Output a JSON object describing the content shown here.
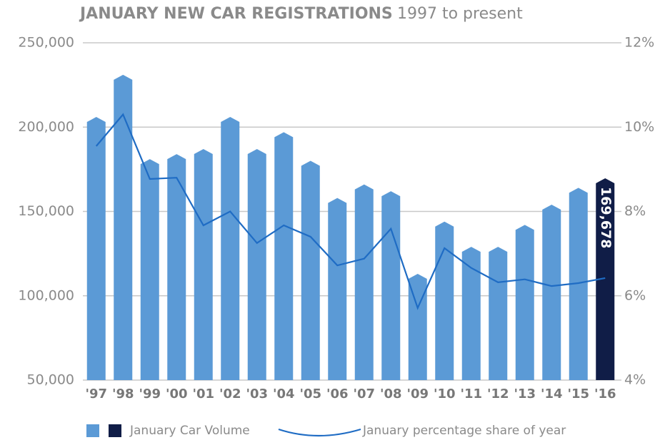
{
  "chart_data": {
    "type": "bar_line",
    "title": "JANUARY NEW CAR REGISTRATIONS",
    "subtitle": "1997 to present",
    "categories": [
      "'97",
      "'98",
      "'99",
      "'00",
      "'01",
      "'02",
      "'03",
      "'04",
      "'05",
      "'06",
      "'07",
      "'08",
      "'09",
      "'10",
      "'11",
      "'12",
      "'13",
      "'14",
      "'15",
      "'16"
    ],
    "series": [
      {
        "name": "January Car Volume",
        "type": "bar",
        "color": "#5b9ad6",
        "highlight_color": "#101d47",
        "values": [
          206000,
          231000,
          181000,
          184000,
          187000,
          206000,
          187000,
          197000,
          180000,
          158000,
          166000,
          162000,
          113000,
          144000,
          129000,
          129000,
          142000,
          154000,
          164000,
          169678
        ],
        "value_labels": [
          null,
          null,
          null,
          null,
          null,
          null,
          null,
          null,
          null,
          null,
          null,
          null,
          null,
          null,
          null,
          null,
          null,
          null,
          null,
          "169,678"
        ]
      },
      {
        "name": "January percentage share of year",
        "type": "line",
        "axis": "y2",
        "color": "#1f6cc4",
        "values": [
          9.55,
          10.3,
          8.77,
          8.8,
          7.67,
          8.0,
          7.25,
          7.67,
          7.4,
          6.72,
          6.88,
          7.59,
          5.71,
          7.13,
          6.66,
          6.32,
          6.39,
          6.23,
          6.3,
          6.42
        ]
      }
    ],
    "ylim": [
      50000,
      250000
    ],
    "yticks": [
      {
        "value": 50000,
        "label": "50,000"
      },
      {
        "value": 100000,
        "label": "100,000"
      },
      {
        "value": 150000,
        "label": "150,000"
      },
      {
        "value": 200000,
        "label": "200,000"
      },
      {
        "value": 250000,
        "label": "250,000"
      }
    ],
    "y2lim": [
      4,
      12
    ],
    "y2ticks": [
      {
        "value": 4,
        "label": "4%"
      },
      {
        "value": 6,
        "label": "6%"
      },
      {
        "value": 8,
        "label": "8%"
      },
      {
        "value": 10,
        "label": "10%"
      },
      {
        "value": 12,
        "label": "12%"
      }
    ],
    "grid": true
  }
}
